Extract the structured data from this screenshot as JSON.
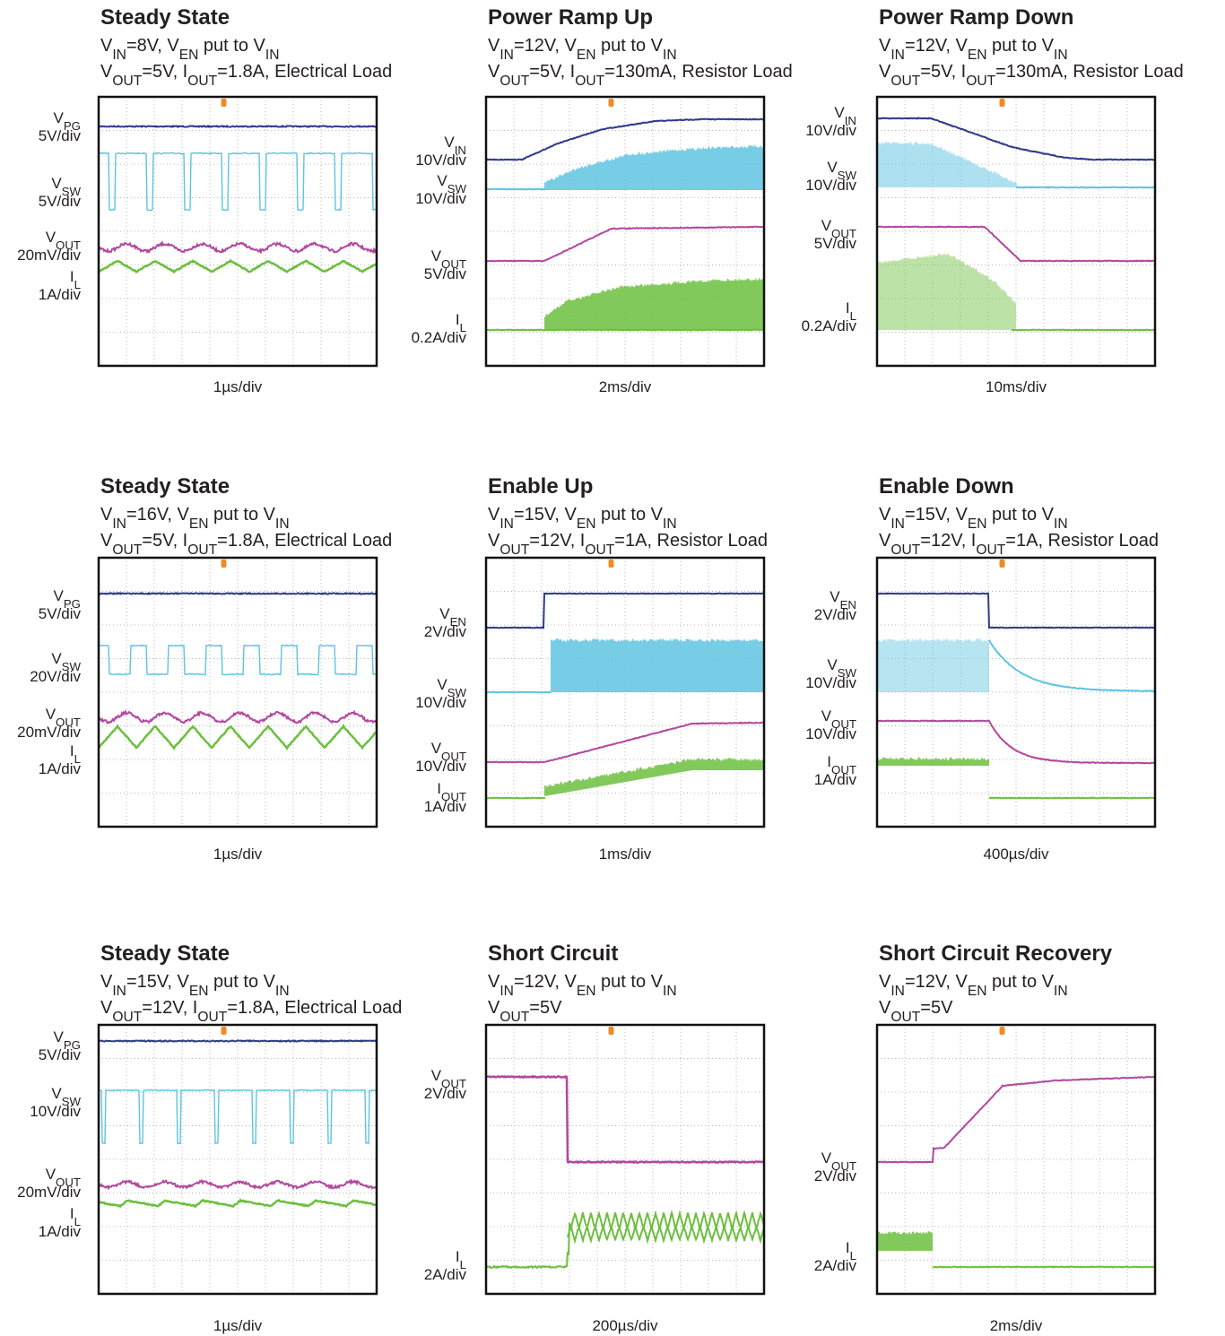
{
  "panels": [
    {
      "title": "Steady State",
      "conditions": [
        [
          "V",
          "IN",
          "=8V, V",
          "EN",
          " put to V",
          "IN"
        ],
        [
          "V",
          "OUT",
          "=5V, I",
          "OUT",
          "=1.8A, Electrical Load"
        ]
      ],
      "channels": [
        {
          "name": [
            "V",
            "PG"
          ],
          "scale": "5V/div"
        },
        {
          "name": [
            "V",
            "SW"
          ],
          "scale": "5V/div"
        },
        {
          "name": [
            "V",
            "OUT"
          ],
          "scale": "20mV/div"
        },
        {
          "name": [
            "I",
            "L"
          ],
          "scale": "1A/div"
        }
      ],
      "timebase": "1µs/div"
    },
    {
      "title": "Power Ramp Up",
      "conditions": [
        [
          "V",
          "IN",
          "=12V, V",
          "EN",
          " put to V",
          "IN"
        ],
        [
          "V",
          "OUT",
          "=5V, I",
          "OUT",
          "=130mA, Resistor Load"
        ]
      ],
      "channels": [
        {
          "name": [
            "V",
            "IN"
          ],
          "scale": "10V/div"
        },
        {
          "name": [
            "V",
            "SW"
          ],
          "scale": "10V/div"
        },
        {
          "name": [
            "V",
            "OUT"
          ],
          "scale": "5V/div"
        },
        {
          "name": [
            "I",
            "L"
          ],
          "scale": "0.2A/div"
        }
      ],
      "timebase": "2ms/div"
    },
    {
      "title": "Power Ramp Down",
      "conditions": [
        [
          "V",
          "IN",
          "=12V,  V",
          "EN",
          " put to V",
          "IN"
        ],
        [
          "V",
          "OUT",
          "=5V, I",
          "OUT",
          "=130mA, Resistor Load"
        ]
      ],
      "channels": [
        {
          "name": [
            "V",
            "IN"
          ],
          "scale": "10V/div"
        },
        {
          "name": [
            "V",
            "SW"
          ],
          "scale": "10V/div"
        },
        {
          "name": [
            "V",
            "OUT"
          ],
          "scale": "5V/div"
        },
        {
          "name": [
            "I",
            "L"
          ],
          "scale": "0.2A/div"
        }
      ],
      "timebase": "10ms/div"
    },
    {
      "title": "Steady State",
      "conditions": [
        [
          "V",
          "IN",
          "=16V, V",
          "EN",
          " put to V",
          "IN"
        ],
        [
          "V",
          "OUT",
          "=5V, I",
          "OUT",
          "=1.8A, Electrical Load"
        ]
      ],
      "channels": [
        {
          "name": [
            "V",
            "PG"
          ],
          "scale": "5V/div"
        },
        {
          "name": [
            "V",
            "SW"
          ],
          "scale": "20V/div"
        },
        {
          "name": [
            "V",
            "OUT"
          ],
          "scale": "20mV/div"
        },
        {
          "name": [
            "I",
            "L"
          ],
          "scale": "1A/div"
        }
      ],
      "timebase": "1µs/div"
    },
    {
      "title": "Enable Up",
      "conditions": [
        [
          "V",
          "IN",
          "=15V, V",
          "EN",
          " put to V",
          "IN"
        ],
        [
          "V",
          "OUT",
          "=12V, I",
          "OUT",
          "=1A, Resistor Load"
        ]
      ],
      "channels": [
        {
          "name": [
            "V",
            "EN"
          ],
          "scale": "2V/div"
        },
        {
          "name": [
            "V",
            "SW"
          ],
          "scale": "10V/div"
        },
        {
          "name": [
            "V",
            "OUT"
          ],
          "scale": "10V/div"
        },
        {
          "name": [
            "I",
            "OUT"
          ],
          "scale": "1A/div"
        }
      ],
      "timebase": "1ms/div"
    },
    {
      "title": "Enable Down",
      "conditions": [
        [
          "V",
          "IN",
          "=15V, V",
          "EN",
          " put to V",
          "IN"
        ],
        [
          "V",
          "OUT",
          "=12V, I",
          "OUT",
          "=1A, Resistor Load"
        ]
      ],
      "channels": [
        {
          "name": [
            "V",
            "EN"
          ],
          "scale": "2V/div"
        },
        {
          "name": [
            "V",
            "SW"
          ],
          "scale": "10V/div"
        },
        {
          "name": [
            "V",
            "OUT"
          ],
          "scale": "10V/div"
        },
        {
          "name": [
            "I",
            "OUT"
          ],
          "scale": "1A/div"
        }
      ],
      "timebase": "400µs/div"
    },
    {
      "title": "Steady State",
      "conditions": [
        [
          "V",
          "IN",
          "=15V, V",
          "EN",
          " put to V",
          "IN"
        ],
        [
          "V",
          "OUT",
          "=12V, I",
          "OUT",
          "=1.8A, Electrical Load"
        ]
      ],
      "channels": [
        {
          "name": [
            "V",
            "PG"
          ],
          "scale": "5V/div"
        },
        {
          "name": [
            "V",
            "SW"
          ],
          "scale": "10V/div"
        },
        {
          "name": [
            "V",
            "OUT"
          ],
          "scale": "20mV/div"
        },
        {
          "name": [
            "I",
            "L"
          ],
          "scale": "1A/div"
        }
      ],
      "timebase": "1µs/div"
    },
    {
      "title": "Short Circuit",
      "conditions": [
        [
          "V",
          "IN",
          "=12V, V",
          "EN",
          " put to V",
          "IN"
        ],
        [
          "V",
          "OUT",
          "=5V"
        ]
      ],
      "channels": [
        {
          "name": [
            "V",
            "OUT"
          ],
          "scale": "2V/div"
        },
        {
          "name": [
            "I",
            "L"
          ],
          "scale": "2A/div"
        }
      ],
      "timebase": "200µs/div"
    },
    {
      "title": "Short Circuit Recovery",
      "conditions": [
        [
          "V",
          "IN",
          "=12V, V",
          "EN",
          " put to V",
          "IN"
        ],
        [
          "V",
          "OUT",
          "=5V"
        ]
      ],
      "channels": [
        {
          "name": [
            "V",
            "OUT"
          ],
          "scale": "2V/div"
        },
        {
          "name": [
            "I",
            "L"
          ],
          "scale": "2A/div"
        }
      ],
      "timebase": "2ms/div"
    }
  ]
}
